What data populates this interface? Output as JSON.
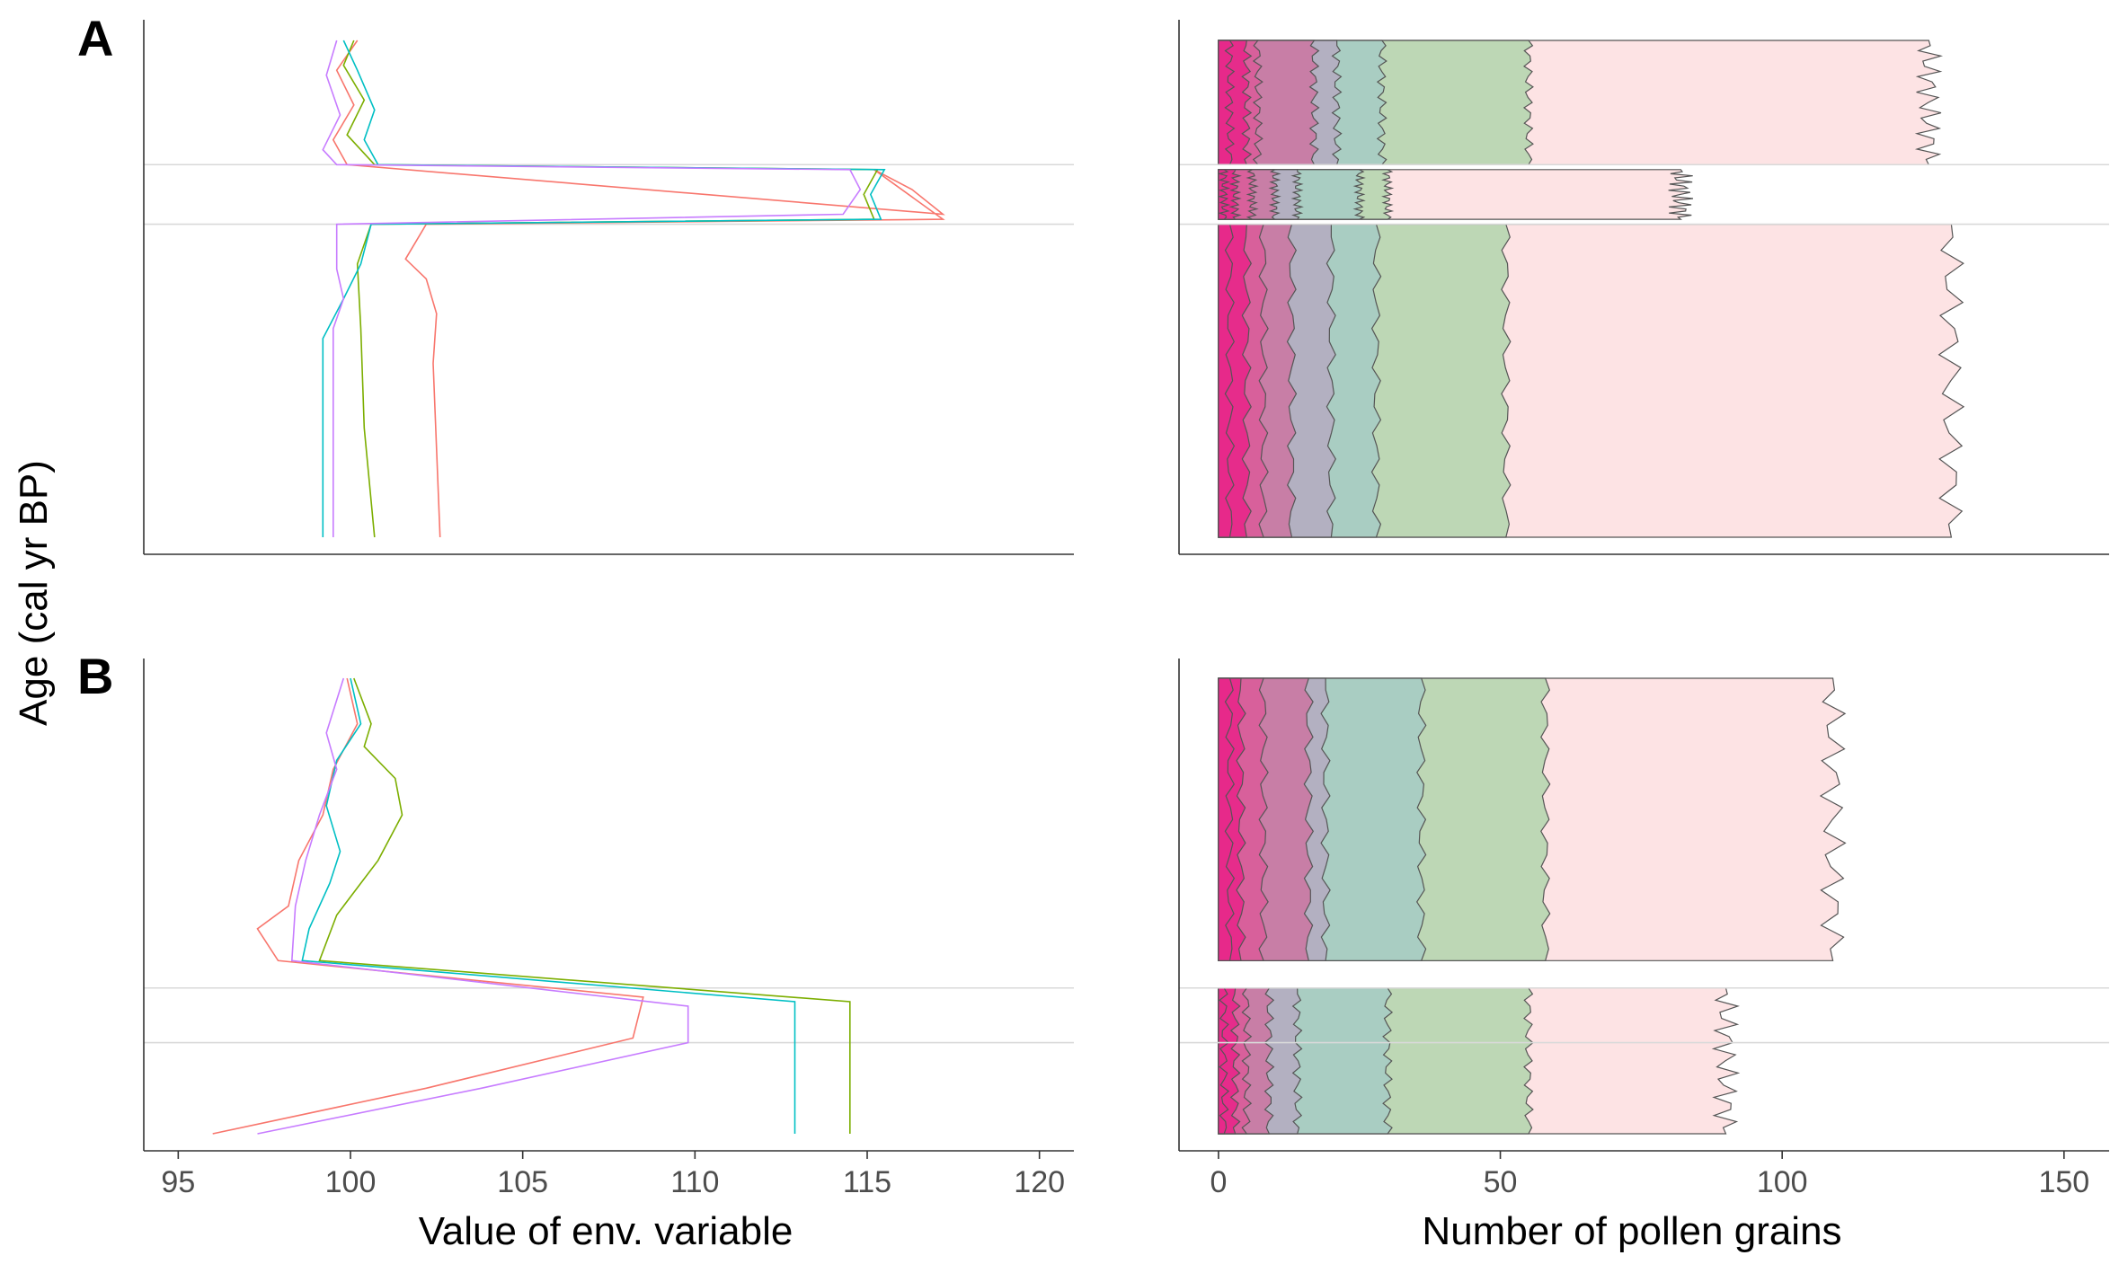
{
  "figure": {
    "panel_labels": [
      "A",
      "B"
    ],
    "y_axis_title": "Age (cal yr BP)",
    "left_x_title": "Value of env. variable",
    "right_x_title": "Number of pollen grains"
  },
  "colors": {
    "env_series": [
      "#F8766D",
      "#7CAE00",
      "#00BFC4",
      "#C77CFF"
    ],
    "pollen_bands": [
      "#E7298A",
      "#E7298A",
      "#D95F9A",
      "#C97BA4",
      "#B3AEC1",
      "#A8CCC3",
      "#B9D6B2",
      "#E7D8B4",
      "#FDE2E3",
      "#EBEFCF",
      "#D8C4DC",
      "#C8C8BB"
    ],
    "band_outline": "#555555"
  },
  "chart_data": [
    {
      "type": "line",
      "panel": "A",
      "xlim": [
        94,
        121
      ],
      "xticks": [
        95,
        100,
        105,
        110,
        115,
        120
      ],
      "xlabel": "Value of env. variable",
      "ylabel": "Age (cal yr BP)",
      "grid": false,
      "reference_lines_age_fraction": [
        0.25,
        0.37
      ],
      "series": [
        {
          "color": "#F8766D",
          "points": [
            [
              100.2,
              0.0
            ],
            [
              99.6,
              0.06
            ],
            [
              100.1,
              0.13
            ],
            [
              99.5,
              0.2
            ],
            [
              99.9,
              0.25
            ],
            [
              117.2,
              0.35
            ],
            [
              116.3,
              0.3
            ],
            [
              115.2,
              0.26
            ],
            [
              117.2,
              0.36
            ],
            [
              102.2,
              0.37
            ],
            [
              101.6,
              0.44
            ],
            [
              102.2,
              0.48
            ],
            [
              102.5,
              0.55
            ],
            [
              102.4,
              0.65
            ],
            [
              102.6,
              1.0
            ]
          ]
        },
        {
          "color": "#7CAE00",
          "points": [
            [
              100.1,
              0.0
            ],
            [
              99.8,
              0.05
            ],
            [
              100.4,
              0.12
            ],
            [
              99.9,
              0.19
            ],
            [
              100.7,
              0.25
            ],
            [
              115.3,
              0.26
            ],
            [
              114.9,
              0.31
            ],
            [
              115.2,
              0.36
            ],
            [
              100.6,
              0.37
            ],
            [
              100.2,
              0.45
            ],
            [
              100.3,
              0.58
            ],
            [
              100.4,
              0.78
            ],
            [
              100.7,
              1.0
            ]
          ]
        },
        {
          "color": "#00BFC4",
          "points": [
            [
              99.8,
              0.0
            ],
            [
              100.2,
              0.06
            ],
            [
              100.7,
              0.14
            ],
            [
              100.4,
              0.2
            ],
            [
              100.8,
              0.25
            ],
            [
              115.5,
              0.26
            ],
            [
              115.1,
              0.31
            ],
            [
              115.4,
              0.36
            ],
            [
              100.6,
              0.37
            ],
            [
              100.3,
              0.45
            ],
            [
              99.8,
              0.52
            ],
            [
              99.2,
              0.6
            ],
            [
              99.2,
              1.0
            ]
          ]
        },
        {
          "color": "#C77CFF",
          "points": [
            [
              99.6,
              0.0
            ],
            [
              99.3,
              0.07
            ],
            [
              99.7,
              0.15
            ],
            [
              99.2,
              0.22
            ],
            [
              99.6,
              0.25
            ],
            [
              114.5,
              0.26
            ],
            [
              114.8,
              0.3
            ],
            [
              114.3,
              0.35
            ],
            [
              99.6,
              0.37
            ],
            [
              99.6,
              0.46
            ],
            [
              99.8,
              0.52
            ],
            [
              99.5,
              0.58
            ],
            [
              99.5,
              1.0
            ]
          ]
        }
      ]
    },
    {
      "type": "area",
      "panel": "A",
      "xlim": [
        -7,
        158
      ],
      "xticks": [
        0,
        50,
        100,
        150
      ],
      "xlabel": "Number of pollen grains",
      "grid": false,
      "reference_lines_age_fraction": [
        0.25,
        0.37
      ],
      "stacked_bands_upper_edge": [
        {
          "segments": [
            [
              0,
              0.25,
              2
            ],
            [
              0.26,
              0.36,
              1
            ],
            [
              0.37,
              1,
              2
            ]
          ]
        },
        {
          "segments": [
            [
              0,
              0.25,
              5
            ],
            [
              0.26,
              0.36,
              3
            ],
            [
              0.37,
              1,
              5
            ]
          ]
        },
        {
          "segments": [
            [
              0,
              0.25,
              7
            ],
            [
              0.26,
              0.36,
              6
            ],
            [
              0.37,
              1,
              8
            ]
          ]
        },
        {
          "segments": [
            [
              0,
              0.25,
              17
            ],
            [
              0.26,
              0.36,
              10
            ],
            [
              0.37,
              1,
              13
            ]
          ]
        },
        {
          "segments": [
            [
              0,
              0.25,
              21
            ],
            [
              0.26,
              0.36,
              14
            ],
            [
              0.37,
              1,
              20
            ]
          ]
        },
        {
          "segments": [
            [
              0,
              0.25,
              29
            ],
            [
              0.26,
              0.36,
              25
            ],
            [
              0.37,
              1,
              28
            ]
          ]
        },
        {
          "segments": [
            [
              0,
              0.25,
              55
            ],
            [
              0.26,
              0.36,
              30
            ],
            [
              0.37,
              1,
              51
            ]
          ]
        },
        {
          "segments": [
            [
              0,
              0.25,
              126
            ],
            [
              0.26,
              0.36,
              82
            ],
            [
              0.37,
              1,
              130
            ]
          ]
        }
      ]
    },
    {
      "type": "line",
      "panel": "B",
      "xlim": [
        94,
        121
      ],
      "xticks": [
        95,
        100,
        105,
        110,
        115,
        120
      ],
      "xlabel": "Value of env. variable",
      "grid": false,
      "reference_lines_age_fraction": [
        0.68,
        0.8
      ],
      "series": [
        {
          "color": "#F8766D",
          "points": [
            [
              99.9,
              0.0
            ],
            [
              100.2,
              0.1
            ],
            [
              99.5,
              0.2
            ],
            [
              99.2,
              0.3
            ],
            [
              98.5,
              0.4
            ],
            [
              98.2,
              0.5
            ],
            [
              97.3,
              0.55
            ],
            [
              97.9,
              0.62
            ],
            [
              108.5,
              0.7
            ],
            [
              108.2,
              0.79
            ],
            [
              102.2,
              0.9
            ],
            [
              96.0,
              1.0
            ]
          ]
        },
        {
          "color": "#7CAE00",
          "points": [
            [
              100.1,
              0.0
            ],
            [
              100.6,
              0.1
            ],
            [
              100.4,
              0.15
            ],
            [
              101.3,
              0.22
            ],
            [
              101.5,
              0.3
            ],
            [
              100.8,
              0.4
            ],
            [
              100.3,
              0.45
            ],
            [
              99.6,
              0.52
            ],
            [
              99.1,
              0.62
            ],
            [
              114.5,
              0.71
            ],
            [
              114.5,
              1.0
            ]
          ]
        },
        {
          "color": "#00BFC4",
          "points": [
            [
              100.0,
              0.0
            ],
            [
              100.3,
              0.1
            ],
            [
              99.6,
              0.18
            ],
            [
              99.3,
              0.28
            ],
            [
              99.7,
              0.38
            ],
            [
              99.4,
              0.45
            ],
            [
              98.8,
              0.55
            ],
            [
              98.6,
              0.62
            ],
            [
              112.9,
              0.71
            ],
            [
              112.9,
              1.0
            ]
          ]
        },
        {
          "color": "#C77CFF",
          "points": [
            [
              99.8,
              0.0
            ],
            [
              99.3,
              0.12
            ],
            [
              99.6,
              0.2
            ],
            [
              99.1,
              0.3
            ],
            [
              98.7,
              0.4
            ],
            [
              98.4,
              0.5
            ],
            [
              98.3,
              0.62
            ],
            [
              109.8,
              0.72
            ],
            [
              109.8,
              0.8
            ],
            [
              103.8,
              0.9
            ],
            [
              97.3,
              1.0
            ]
          ]
        }
      ]
    },
    {
      "type": "area",
      "panel": "B",
      "xlim": [
        -7,
        158
      ],
      "xticks": [
        0,
        50,
        100,
        150
      ],
      "xlabel": "Number of pollen grains",
      "grid": false,
      "reference_lines_age_fraction": [
        0.68,
        0.8
      ],
      "stacked_bands_upper_edge": [
        {
          "segments": [
            [
              0,
              0.62,
              2
            ],
            [
              0.68,
              1,
              1
            ]
          ]
        },
        {
          "segments": [
            [
              0,
              0.62,
              4
            ],
            [
              0.68,
              1,
              3
            ]
          ]
        },
        {
          "segments": [
            [
              0,
              0.62,
              8
            ],
            [
              0.68,
              1,
              5
            ]
          ]
        },
        {
          "segments": [
            [
              0,
              0.62,
              16
            ],
            [
              0.68,
              1,
              9
            ]
          ]
        },
        {
          "segments": [
            [
              0,
              0.62,
              19
            ],
            [
              0.68,
              1,
              14
            ]
          ]
        },
        {
          "segments": [
            [
              0,
              0.62,
              36
            ],
            [
              0.68,
              1,
              30
            ]
          ]
        },
        {
          "segments": [
            [
              0,
              0.62,
              58
            ],
            [
              0.68,
              1,
              55
            ]
          ]
        },
        {
          "segments": [
            [
              0,
              0.62,
              109
            ],
            [
              0.68,
              1,
              90
            ]
          ]
        }
      ]
    }
  ]
}
